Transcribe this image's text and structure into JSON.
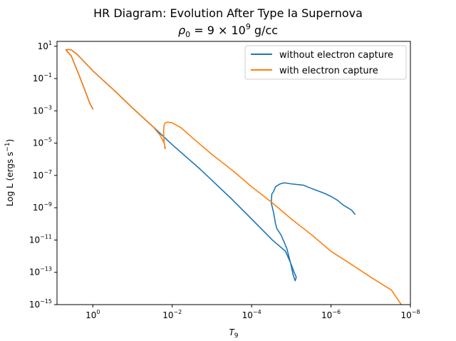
{
  "chart_data": {
    "type": "line",
    "title_line1": "HR Diagram: Evolution After Type Ia Supernova",
    "title_line2_prefix": "ρ",
    "title_line2_sub": "0",
    "title_line2_mid": " = 9 × 10",
    "title_line2_sup": "9",
    "title_line2_suffix": " g/cc",
    "xlabel_main": "T",
    "xlabel_sub": "9",
    "ylabel_main": "Log L (ergs s",
    "ylabel_sup": "−1",
    "ylabel_end": ")",
    "x_scale": "log",
    "y_scale": "log",
    "x_inverted": true,
    "xlim": [
      8.0,
      1e-08
    ],
    "ylim": [
      1e-15,
      20
    ],
    "x_ticks": [
      {
        "value": 1,
        "base": "10",
        "exp": "0"
      },
      {
        "value": 0.01,
        "base": "10",
        "exp": "−2"
      },
      {
        "value": 0.0001,
        "base": "10",
        "exp": "−4"
      },
      {
        "value": 1e-06,
        "base": "10",
        "exp": "−6"
      },
      {
        "value": 1e-08,
        "base": "10",
        "exp": "−8"
      }
    ],
    "y_ticks": [
      {
        "value": 1e-15,
        "base": "10",
        "exp": "−15"
      },
      {
        "value": 1e-13,
        "base": "10",
        "exp": "−13"
      },
      {
        "value": 1e-11,
        "base": "10",
        "exp": "−11"
      },
      {
        "value": 1e-09,
        "base": "10",
        "exp": "−9"
      },
      {
        "value": 1e-07,
        "base": "10",
        "exp": "−7"
      },
      {
        "value": 1e-05,
        "base": "10",
        "exp": "−5"
      },
      {
        "value": 0.001,
        "base": "10",
        "exp": "−3"
      },
      {
        "value": 0.1,
        "base": "10",
        "exp": "−1"
      },
      {
        "value": 10,
        "base": "10",
        "exp": "1"
      }
    ],
    "legend_position": "upper-right",
    "series": [
      {
        "name": "without electron capture",
        "color": "#1f77b4",
        "points": [
          [
            1.0,
            0.0013
          ],
          [
            1.2,
            0.003
          ],
          [
            1.6,
            0.02
          ],
          [
            2.3,
            0.2
          ],
          [
            3.5,
            2.5
          ],
          [
            4.8,
            6.0
          ],
          [
            4.2,
            6.3
          ],
          [
            3.5,
            6.0
          ],
          [
            2.5,
            3.2
          ],
          [
            1.0,
            0.3
          ],
          [
            0.3,
            0.02
          ],
          [
            0.1,
            0.0015
          ],
          [
            0.03,
            0.0001
          ],
          [
            0.01,
            8e-06
          ],
          [
            0.002,
            2.5e-07
          ],
          [
            0.001,
            5e-08
          ],
          [
            0.0003,
            3e-09
          ],
          [
            0.0001,
            2e-10
          ],
          [
            3e-05,
            1e-11
          ],
          [
            1.4e-05,
            2e-12
          ],
          [
            1e-05,
            3e-13
          ],
          [
            8.5e-06,
            1e-13
          ],
          [
            7.5e-06,
            5e-14
          ],
          [
            8e-06,
            3e-14
          ],
          [
            9e-06,
            7e-14
          ],
          [
            1.05e-05,
            4e-13
          ],
          [
            1.3e-05,
            3e-12
          ],
          [
            1.8e-05,
            2e-11
          ],
          [
            2.3e-05,
            5e-11
          ],
          [
            2.5e-05,
            1e-10
          ],
          [
            2.8e-05,
            5e-10
          ],
          [
            3.2e-05,
            2e-09
          ],
          [
            3.1e-05,
            7e-09
          ],
          [
            2.8e-05,
            1e-08
          ],
          [
            2.5e-05,
            2e-08
          ],
          [
            1.9e-05,
            3e-08
          ],
          [
            1.5e-05,
            3.5e-08
          ],
          [
            1e-05,
            3e-08
          ],
          [
            5e-06,
            2.5e-08
          ],
          [
            3e-06,
            1.5e-08
          ],
          [
            1.5e-06,
            8e-09
          ],
          [
            1e-06,
            5e-09
          ],
          [
            7e-07,
            3e-09
          ],
          [
            5e-07,
            1.5e-09
          ],
          [
            3e-07,
            7e-10
          ],
          [
            2.5e-07,
            4e-10
          ]
        ]
      },
      {
        "name": "with electron capture",
        "color": "#ff7f0e",
        "points": [
          [
            1.0,
            0.0013
          ],
          [
            1.2,
            0.003
          ],
          [
            1.6,
            0.02
          ],
          [
            2.3,
            0.2
          ],
          [
            3.5,
            2.5
          ],
          [
            4.8,
            6.0
          ],
          [
            4.2,
            6.3
          ],
          [
            3.5,
            6.0
          ],
          [
            2.5,
            3.2
          ],
          [
            1.0,
            0.3
          ],
          [
            0.3,
            0.02
          ],
          [
            0.1,
            0.0015
          ],
          [
            0.03,
            0.0001
          ],
          [
            0.02,
            3e-05
          ],
          [
            0.016,
            1e-05
          ],
          [
            0.015,
            5e-06
          ],
          [
            0.0152,
            4.5e-06
          ],
          [
            0.016,
            1.2e-05
          ],
          [
            0.0165,
            5e-05
          ],
          [
            0.0162,
            0.00012
          ],
          [
            0.015,
            0.00018
          ],
          [
            0.013,
            0.0002
          ],
          [
            0.01,
            0.00018
          ],
          [
            0.006,
            9e-05
          ],
          [
            0.003,
            2e-05
          ],
          [
            0.001,
            2e-06
          ],
          [
            0.0003,
            2e-07
          ],
          [
            0.0001,
            2e-08
          ],
          [
            3e-05,
            2e-09
          ],
          [
            1e-05,
            2e-10
          ],
          [
            3e-06,
            2e-11
          ],
          [
            1e-06,
            2e-12
          ],
          [
            3e-07,
            3e-13
          ],
          [
            1e-07,
            5e-14
          ],
          [
            3e-08,
            8e-15
          ],
          [
            1.7e-08,
            1e-15
          ]
        ]
      }
    ]
  }
}
